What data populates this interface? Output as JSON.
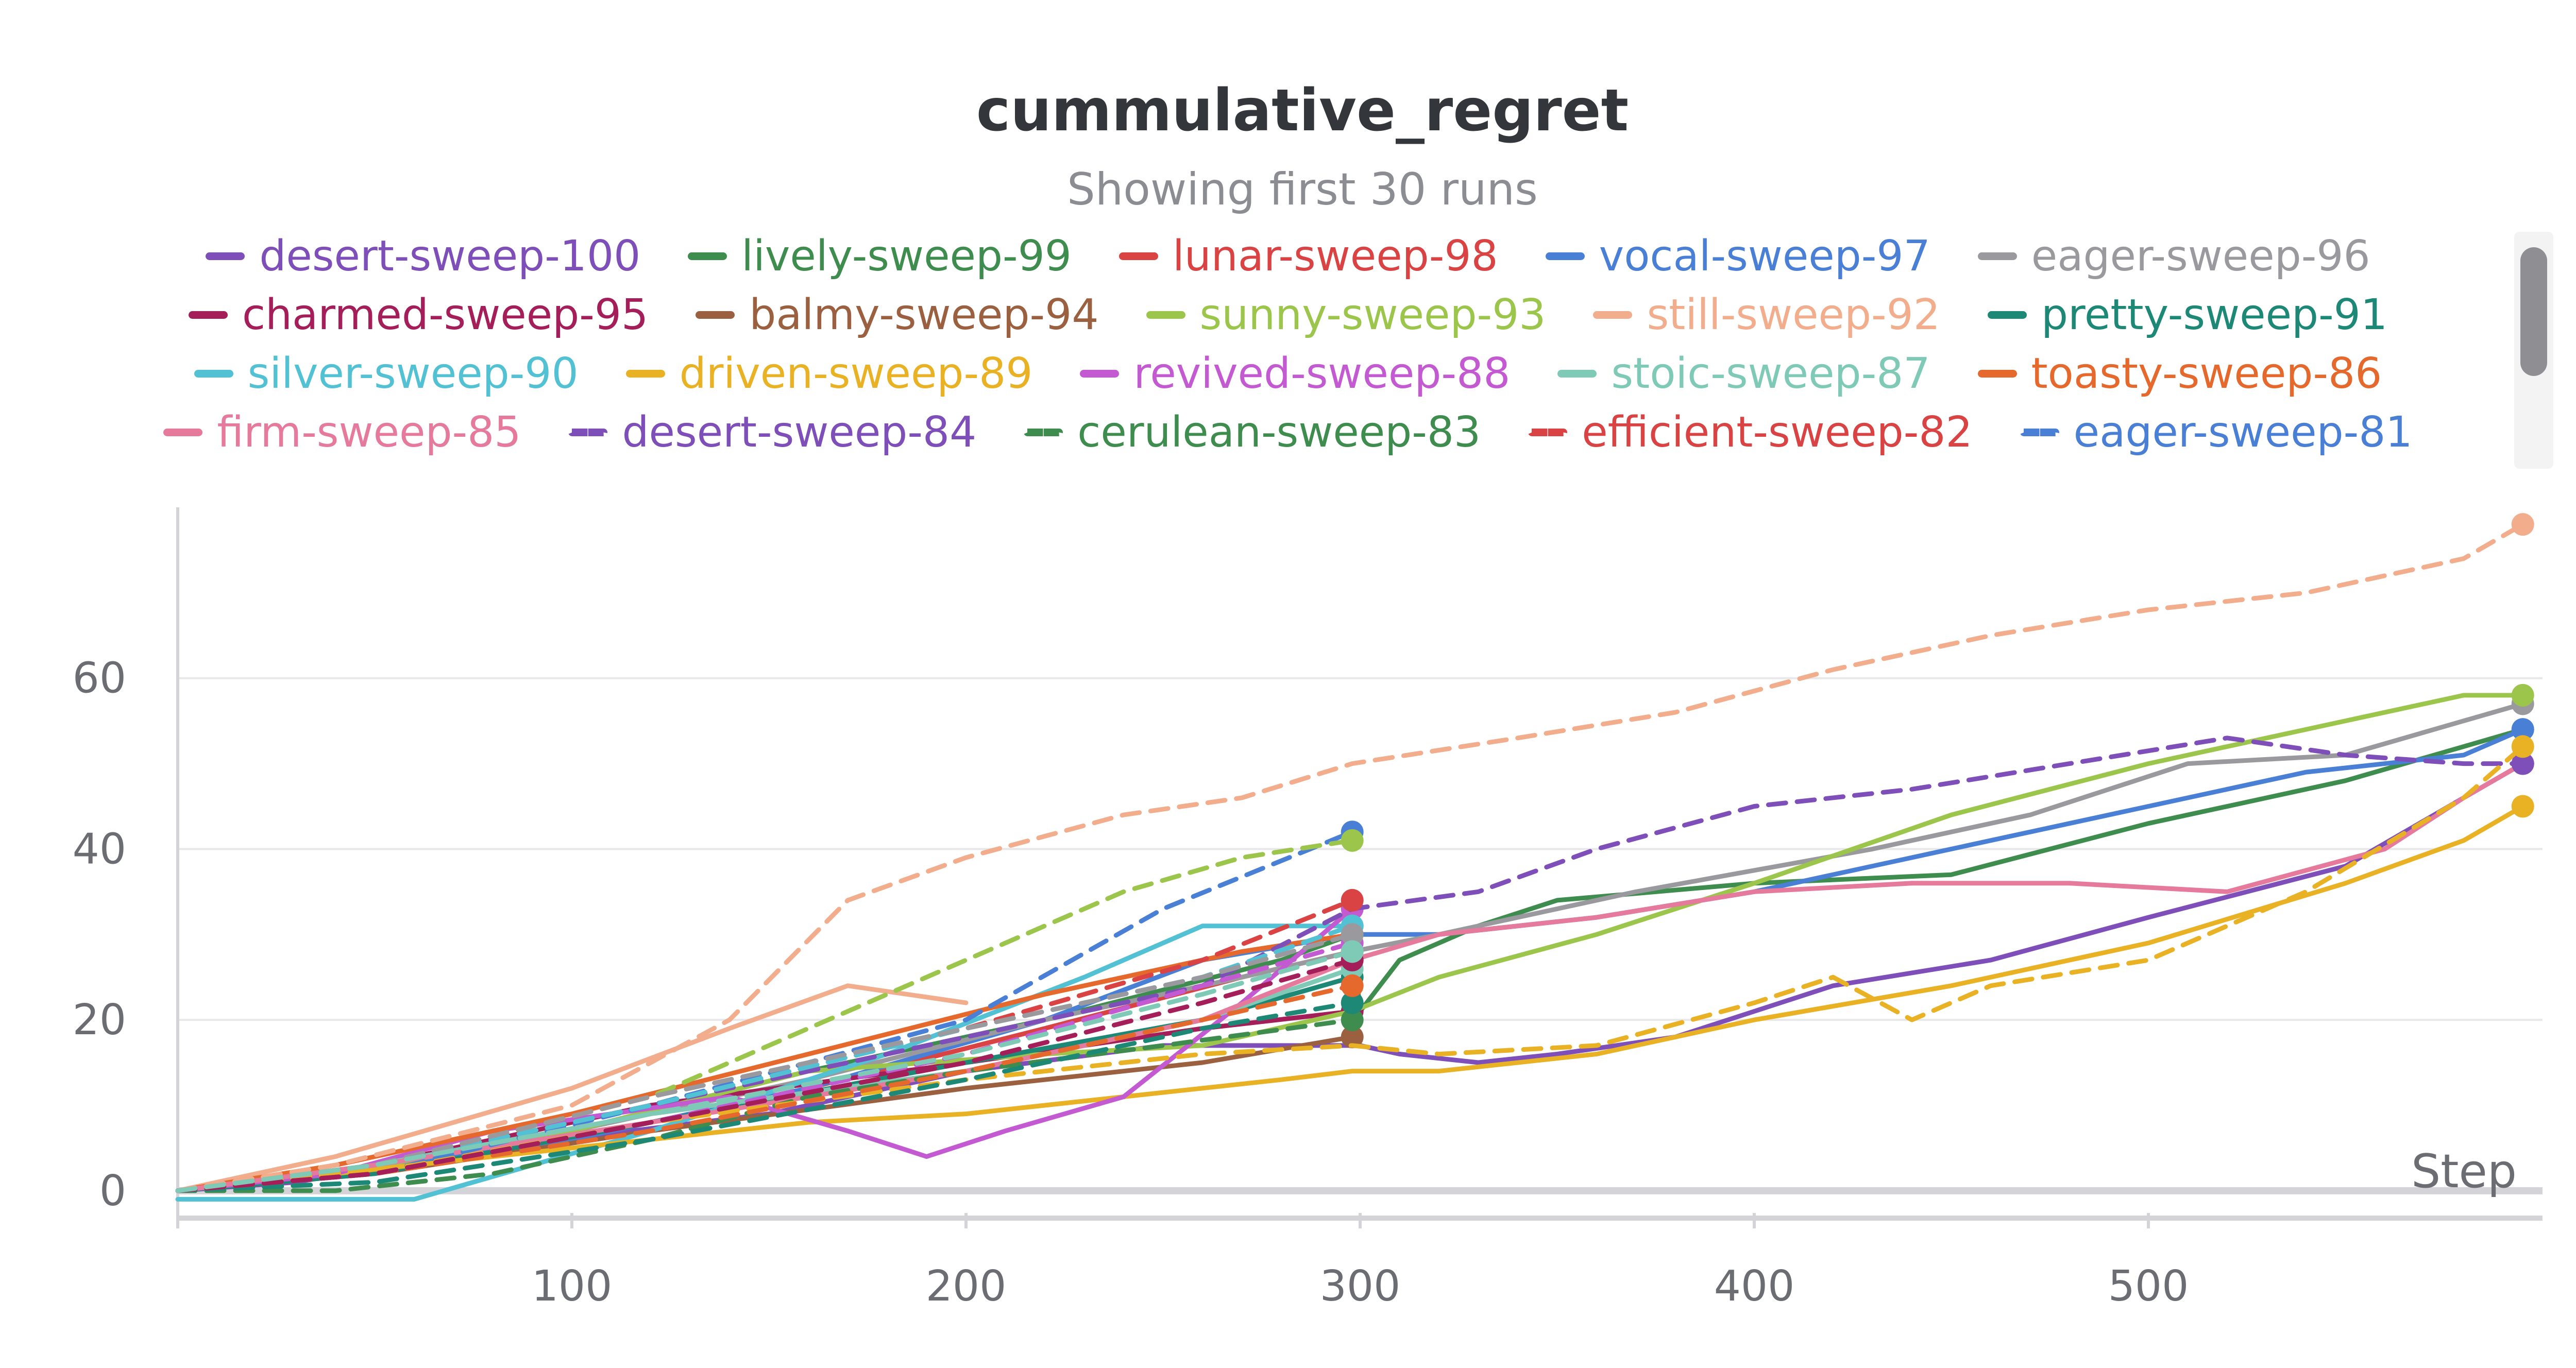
{
  "chart_data": {
    "type": "line",
    "title": "cummulative_regret",
    "subtitle": "Showing first 30 runs",
    "xlabel": "Step",
    "ylabel": "",
    "xlim": [
      0,
      600
    ],
    "ylim": [
      -2,
      80
    ],
    "xticks": [
      100,
      200,
      300,
      400,
      500
    ],
    "yticks": [
      0,
      20,
      40,
      60
    ],
    "grid": true,
    "legend_position": "top",
    "series": [
      {
        "name": "desert-sweep-100",
        "color": "#7e4fb8",
        "dash": false,
        "x": [
          0,
          30,
          80,
          150,
          200,
          250,
          300,
          310,
          330,
          350,
          380,
          400,
          420,
          460,
          500,
          550,
          580,
          595
        ],
        "y": [
          0,
          1,
          5,
          9,
          14,
          17,
          17,
          16,
          15,
          16,
          18,
          21,
          24,
          27,
          32,
          38,
          46,
          50
        ]
      },
      {
        "name": "lively-sweep-99",
        "color": "#3e8c4e",
        "dash": false,
        "x": [
          0,
          40,
          100,
          160,
          220,
          280,
          298,
          300,
          310,
          330,
          350,
          400,
          450,
          500,
          550,
          580,
          595
        ],
        "y": [
          0,
          2,
          7,
          14,
          20,
          27,
          30,
          21,
          27,
          31,
          34,
          36,
          37,
          43,
          48,
          52,
          54
        ]
      },
      {
        "name": "lunar-sweep-98",
        "color": "#d94343",
        "dash": false,
        "x": [
          0,
          40,
          100,
          160,
          220,
          270,
          298
        ],
        "y": [
          0,
          2,
          6,
          12,
          19,
          25,
          28
        ]
      },
      {
        "name": "vocal-sweep-97",
        "color": "#4a7fd6",
        "dash": false,
        "x": [
          0,
          40,
          100,
          160,
          220,
          260,
          298,
          320,
          360,
          400,
          450,
          500,
          540,
          580,
          595
        ],
        "y": [
          0,
          2,
          6,
          12,
          20,
          27,
          30,
          30,
          32,
          35,
          40,
          45,
          49,
          51,
          54
        ]
      },
      {
        "name": "eager-sweep-96",
        "color": "#9a9a9e",
        "dash": false,
        "x": [
          0,
          40,
          100,
          160,
          220,
          270,
          298,
          320,
          370,
          430,
          470,
          510,
          550,
          580,
          595
        ],
        "y": [
          0,
          2,
          7,
          13,
          20,
          25,
          28,
          30,
          35,
          40,
          44,
          50,
          51,
          55,
          57
        ]
      },
      {
        "name": "charmed-sweep-95",
        "color": "#a41f59",
        "dash": false,
        "x": [
          0,
          50,
          120,
          200,
          260,
          298
        ],
        "y": [
          0,
          3,
          10,
          15,
          19,
          21
        ]
      },
      {
        "name": "balmy-sweep-94",
        "color": "#9a6040",
        "dash": false,
        "x": [
          0,
          50,
          120,
          200,
          260,
          298
        ],
        "y": [
          0,
          2,
          7,
          12,
          15,
          18
        ]
      },
      {
        "name": "sunny-sweep-93",
        "color": "#9cc54c",
        "dash": false,
        "x": [
          0,
          40,
          100,
          160,
          220,
          260,
          298,
          320,
          360,
          400,
          450,
          500,
          550,
          580,
          595
        ],
        "y": [
          0,
          2,
          7,
          14,
          16,
          17,
          21,
          25,
          30,
          36,
          44,
          50,
          55,
          58,
          58
        ]
      },
      {
        "name": "still-sweep-92",
        "color": "#f2ad8d",
        "dash": false,
        "x": [
          0,
          40,
          100,
          140,
          170,
          200
        ],
        "y": [
          0,
          4,
          12,
          19,
          24,
          22
        ]
      },
      {
        "name": "pretty-sweep-91",
        "color": "#1e8877",
        "dash": false,
        "x": [
          0,
          50,
          120,
          200,
          260,
          298
        ],
        "y": [
          0,
          2,
          8,
          15,
          20,
          25
        ]
      },
      {
        "name": "silver-sweep-90",
        "color": "#52c1d3",
        "dash": false,
        "x": [
          0,
          60,
          120,
          180,
          230,
          260,
          298
        ],
        "y": [
          -1,
          -1,
          7,
          16,
          25,
          31,
          31
        ]
      },
      {
        "name": "driven-sweep-89",
        "color": "#e9b124",
        "dash": false,
        "x": [
          0,
          60,
          120,
          160,
          200,
          240,
          280,
          298,
          320,
          360,
          400,
          450,
          500,
          550,
          580,
          595
        ],
        "y": [
          0,
          3,
          6,
          8,
          9,
          11,
          13,
          14,
          14,
          16,
          20,
          24,
          29,
          36,
          41,
          45
        ]
      },
      {
        "name": "revived-sweep-88",
        "color": "#c35ad2",
        "dash": false,
        "x": [
          0,
          40,
          80,
          140,
          170,
          190,
          210,
          240,
          270,
          298
        ],
        "y": [
          0,
          2,
          7,
          11,
          7,
          4,
          7,
          11,
          22,
          33
        ]
      },
      {
        "name": "stoic-sweep-87",
        "color": "#7fcab7",
        "dash": false,
        "x": [
          0,
          50,
          120,
          200,
          260,
          298
        ],
        "y": [
          0,
          3,
          9,
          14,
          20,
          26
        ]
      },
      {
        "name": "toasty-sweep-86",
        "color": "#e5692c",
        "dash": false,
        "x": [
          0,
          40,
          100,
          160,
          220,
          270,
          298
        ],
        "y": [
          0,
          3,
          9,
          16,
          23,
          28,
          30
        ]
      },
      {
        "name": "firm-sweep-85",
        "color": "#e67a9c",
        "dash": false,
        "x": [
          0,
          50,
          120,
          200,
          260,
          298,
          320,
          360,
          400,
          440,
          480,
          520,
          560,
          580,
          595
        ],
        "y": [
          0,
          3,
          8,
          14,
          20,
          27,
          30,
          32,
          35,
          36,
          36,
          35,
          40,
          46,
          50
        ]
      },
      {
        "name": "desert-sweep-84",
        "color": "#7e4fb8",
        "dash": true,
        "x": [
          0,
          50,
          120,
          200,
          260,
          298,
          330,
          360,
          400,
          440,
          480,
          520,
          550,
          580,
          595
        ],
        "y": [
          0,
          3,
          10,
          18,
          24,
          33,
          35,
          40,
          45,
          47,
          50,
          53,
          51,
          50,
          50
        ]
      },
      {
        "name": "cerulean-sweep-83",
        "color": "#3e8c4e",
        "dash": true,
        "x": [
          0,
          40,
          80,
          120,
          160,
          200,
          250,
          298
        ],
        "y": [
          0,
          0,
          2,
          6,
          11,
          14,
          17,
          20
        ]
      },
      {
        "name": "efficient-sweep-82",
        "color": "#d94343",
        "dash": true,
        "x": [
          0,
          50,
          120,
          200,
          260,
          298
        ],
        "y": [
          0,
          3,
          10,
          19,
          27,
          34
        ]
      },
      {
        "name": "eager-sweep-81",
        "color": "#4a7fd6",
        "dash": true,
        "x": [
          0,
          50,
          120,
          200,
          250,
          298
        ],
        "y": [
          0,
          2,
          10,
          20,
          33,
          42
        ]
      },
      {
        "name": "",
        "color": "#f2ad8d",
        "dash": true,
        "x": [
          0,
          40,
          100,
          140,
          170,
          200,
          240,
          270,
          298,
          340,
          380,
          420,
          460,
          500,
          540,
          580,
          595
        ],
        "y": [
          0,
          3,
          10,
          20,
          34,
          39,
          44,
          46,
          50,
          53,
          56,
          61,
          65,
          68,
          70,
          74,
          78
        ]
      },
      {
        "name": "",
        "color": "#9cc54c",
        "dash": true,
        "x": [
          0,
          50,
          120,
          200,
          240,
          270,
          298
        ],
        "y": [
          0,
          3,
          11,
          27,
          35,
          39,
          41
        ]
      },
      {
        "name": "",
        "color": "#e9b124",
        "dash": true,
        "x": [
          0,
          60,
          120,
          200,
          260,
          298,
          320,
          360,
          400,
          420,
          440,
          460,
          500,
          540,
          580,
          595
        ],
        "y": [
          0,
          3,
          8,
          13,
          16,
          17,
          16,
          17,
          22,
          25,
          20,
          24,
          27,
          35,
          46,
          52
        ]
      },
      {
        "name": "",
        "color": "#52c1d3",
        "dash": true,
        "x": [
          0,
          50,
          120,
          200,
          260,
          298
        ],
        "y": [
          0,
          3,
          10,
          19,
          25,
          31
        ]
      },
      {
        "name": "",
        "color": "#c35ad2",
        "dash": true,
        "x": [
          0,
          50,
          120,
          200,
          260,
          298
        ],
        "y": [
          0,
          2,
          8,
          16,
          24,
          29
        ]
      },
      {
        "name": "",
        "color": "#9a9a9e",
        "dash": true,
        "x": [
          0,
          50,
          120,
          200,
          260,
          298
        ],
        "y": [
          0,
          3,
          11,
          19,
          25,
          30
        ]
      },
      {
        "name": "",
        "color": "#1e8877",
        "dash": true,
        "x": [
          0,
          50,
          120,
          200,
          260,
          298
        ],
        "y": [
          0,
          1,
          6,
          13,
          19,
          22
        ]
      },
      {
        "name": "",
        "color": "#e5692c",
        "dash": true,
        "x": [
          0,
          50,
          120,
          200,
          260,
          298
        ],
        "y": [
          0,
          2,
          7,
          14,
          20,
          24
        ]
      },
      {
        "name": "",
        "color": "#a41f59",
        "dash": true,
        "x": [
          0,
          50,
          120,
          200,
          260,
          298
        ],
        "y": [
          0,
          2,
          8,
          15,
          22,
          27
        ]
      },
      {
        "name": "",
        "color": "#7fcab7",
        "dash": true,
        "x": [
          0,
          50,
          120,
          200,
          260,
          298
        ],
        "y": [
          0,
          3,
          9,
          16,
          23,
          28
        ]
      }
    ]
  }
}
